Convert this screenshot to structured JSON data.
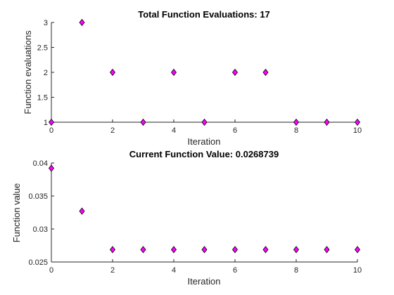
{
  "chart_data": [
    {
      "type": "scatter",
      "title": "Total Function Evaluations: 17",
      "xlabel": "Iteration",
      "ylabel": "Function evaluations",
      "xlim": [
        0,
        10
      ],
      "ylim": [
        1,
        3
      ],
      "xticks": [
        0,
        2,
        4,
        6,
        8,
        10
      ],
      "yticks": [
        1,
        1.5,
        2,
        2.5,
        3
      ],
      "xtick_labels": [
        "0",
        "2",
        "4",
        "6",
        "8",
        "10"
      ],
      "ytick_labels": [
        "1",
        "1.5",
        "2",
        "2.5",
        "3"
      ],
      "grid": false,
      "marker": "diamond",
      "marker_color": "#ff00ff",
      "x": [
        0,
        1,
        2,
        3,
        4,
        5,
        6,
        7,
        8,
        9,
        10
      ],
      "y": [
        1,
        3,
        2,
        1,
        2,
        1,
        2,
        2,
        1,
        1,
        1
      ]
    },
    {
      "type": "scatter",
      "title": "Current Function Value: 0.0268739",
      "xlabel": "Iteration",
      "ylabel": "Function value",
      "xlim": [
        0,
        10
      ],
      "ylim": [
        0.025,
        0.04
      ],
      "xticks": [
        0,
        2,
        4,
        6,
        8,
        10
      ],
      "yticks": [
        0.025,
        0.03,
        0.035,
        0.04
      ],
      "xtick_labels": [
        "0",
        "2",
        "4",
        "6",
        "8",
        "10"
      ],
      "ytick_labels": [
        "0.025",
        "0.03",
        "0.035",
        "0.04"
      ],
      "grid": false,
      "marker": "diamond",
      "marker_color": "#ff00ff",
      "x": [
        0,
        1,
        2,
        3,
        4,
        5,
        6,
        7,
        8,
        9,
        10
      ],
      "y": [
        0.0392,
        0.0327,
        0.0268739,
        0.0268739,
        0.0268739,
        0.0268739,
        0.0268739,
        0.0268739,
        0.0268739,
        0.0268739,
        0.0268739
      ]
    }
  ]
}
